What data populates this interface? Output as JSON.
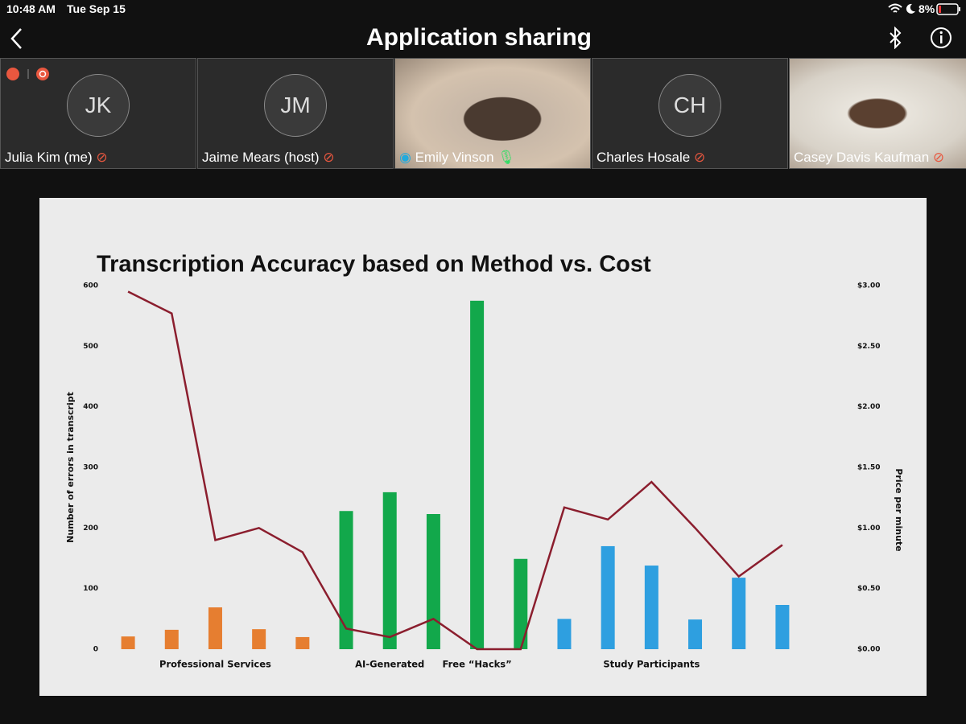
{
  "status_bar": {
    "time": "10:48 AM",
    "date": "Tue Sep 15",
    "battery": "8%"
  },
  "header": {
    "title": "Application sharing"
  },
  "participants": [
    {
      "initials": "JK",
      "name": "Julia Kim (me)"
    },
    {
      "initials": "JM",
      "name": "Jaime Mears (host)"
    },
    {
      "name": "Emily Vinson"
    },
    {
      "initials": "CH",
      "name": "Charles Hosale"
    },
    {
      "name": "Casey Davis Kaufman"
    }
  ],
  "chart_data": {
    "type": "bar",
    "title": "Transcription Accuracy based on Method vs. Cost",
    "ylabel": "Number of errors in transcript",
    "y2label": "Price per minute",
    "categories": [
      null,
      null,
      "Professional Services",
      null,
      null,
      null,
      "AI-Generated",
      null,
      "Free “Hacks”",
      null,
      null,
      null,
      "Study Participants",
      null,
      null,
      null
    ],
    "series": [
      {
        "type": "bar",
        "colors": [
          "#e67e30",
          "#e67e30",
          "#e67e30",
          "#e67e30",
          "#e67e30",
          "#12a84b",
          "#12a84b",
          "#12a84b",
          "#12a84b",
          "#12a84b",
          "#2e9fe0",
          "#2e9fe0",
          "#2e9fe0",
          "#2e9fe0",
          "#2e9fe0",
          "#2e9fe0"
        ],
        "values": [
          21,
          32,
          69,
          33,
          20,
          228,
          259,
          223,
          575,
          149,
          50,
          170,
          138,
          49,
          118,
          73
        ]
      },
      {
        "type": "line",
        "axis": "y2",
        "color": "#8b1e2e",
        "values": [
          2.95,
          2.77,
          0.9,
          1.0,
          0.8,
          0.17,
          0.1,
          0.25,
          0,
          0,
          1.17,
          1.07,
          1.38,
          1.0,
          0.6,
          0.86
        ]
      }
    ],
    "ylim": [
      0,
      600
    ],
    "yticks": [
      0,
      100,
      200,
      300,
      400,
      500,
      600
    ],
    "y2lim": [
      0,
      3
    ],
    "y2ticks": [
      {
        "value": 0,
        "label": "$0.00"
      },
      {
        "value": 0.5,
        "label": "$0.50"
      },
      {
        "value": 1,
        "label": "$1.00"
      },
      {
        "value": 1.5,
        "label": "$1.50"
      },
      {
        "value": 2,
        "label": "$2.00"
      },
      {
        "value": 2.5,
        "label": "$2.50"
      },
      {
        "value": 3,
        "label": "$3.00"
      }
    ],
    "grid": false
  }
}
